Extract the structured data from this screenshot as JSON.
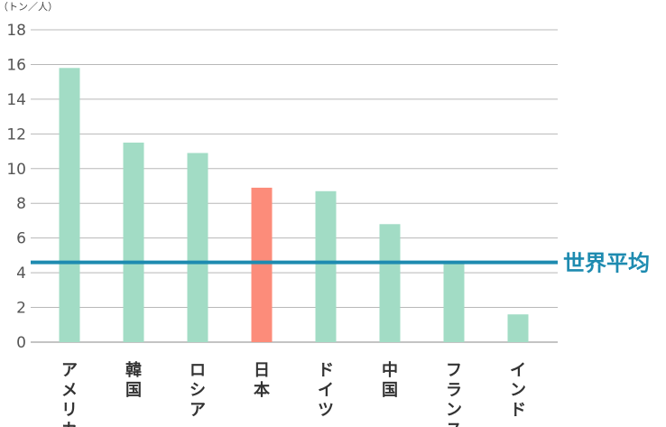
{
  "chart_data": {
    "type": "bar",
    "y_unit": "（トン／人）",
    "categories": [
      "アメリカ",
      "韓国",
      "ロシア",
      "日本",
      "ドイツ",
      "中国",
      "フランス",
      "インド"
    ],
    "values": [
      15.8,
      11.5,
      10.9,
      8.9,
      8.7,
      6.8,
      4.6,
      1.6
    ],
    "highlight_category": "日本",
    "ylim": [
      0,
      18
    ],
    "yticks": [
      "0",
      "2",
      "4",
      "6",
      "8",
      "10",
      "12",
      "14",
      "16",
      "18"
    ],
    "grid": true,
    "reference_line": {
      "label": "世界平均",
      "value": 4.6
    },
    "colors": {
      "bar": "#a2dcc5",
      "highlight": "#fc8c7a",
      "reference": "#1e8bb0",
      "grid": "#b8b8b8",
      "axis": "#888888"
    }
  }
}
